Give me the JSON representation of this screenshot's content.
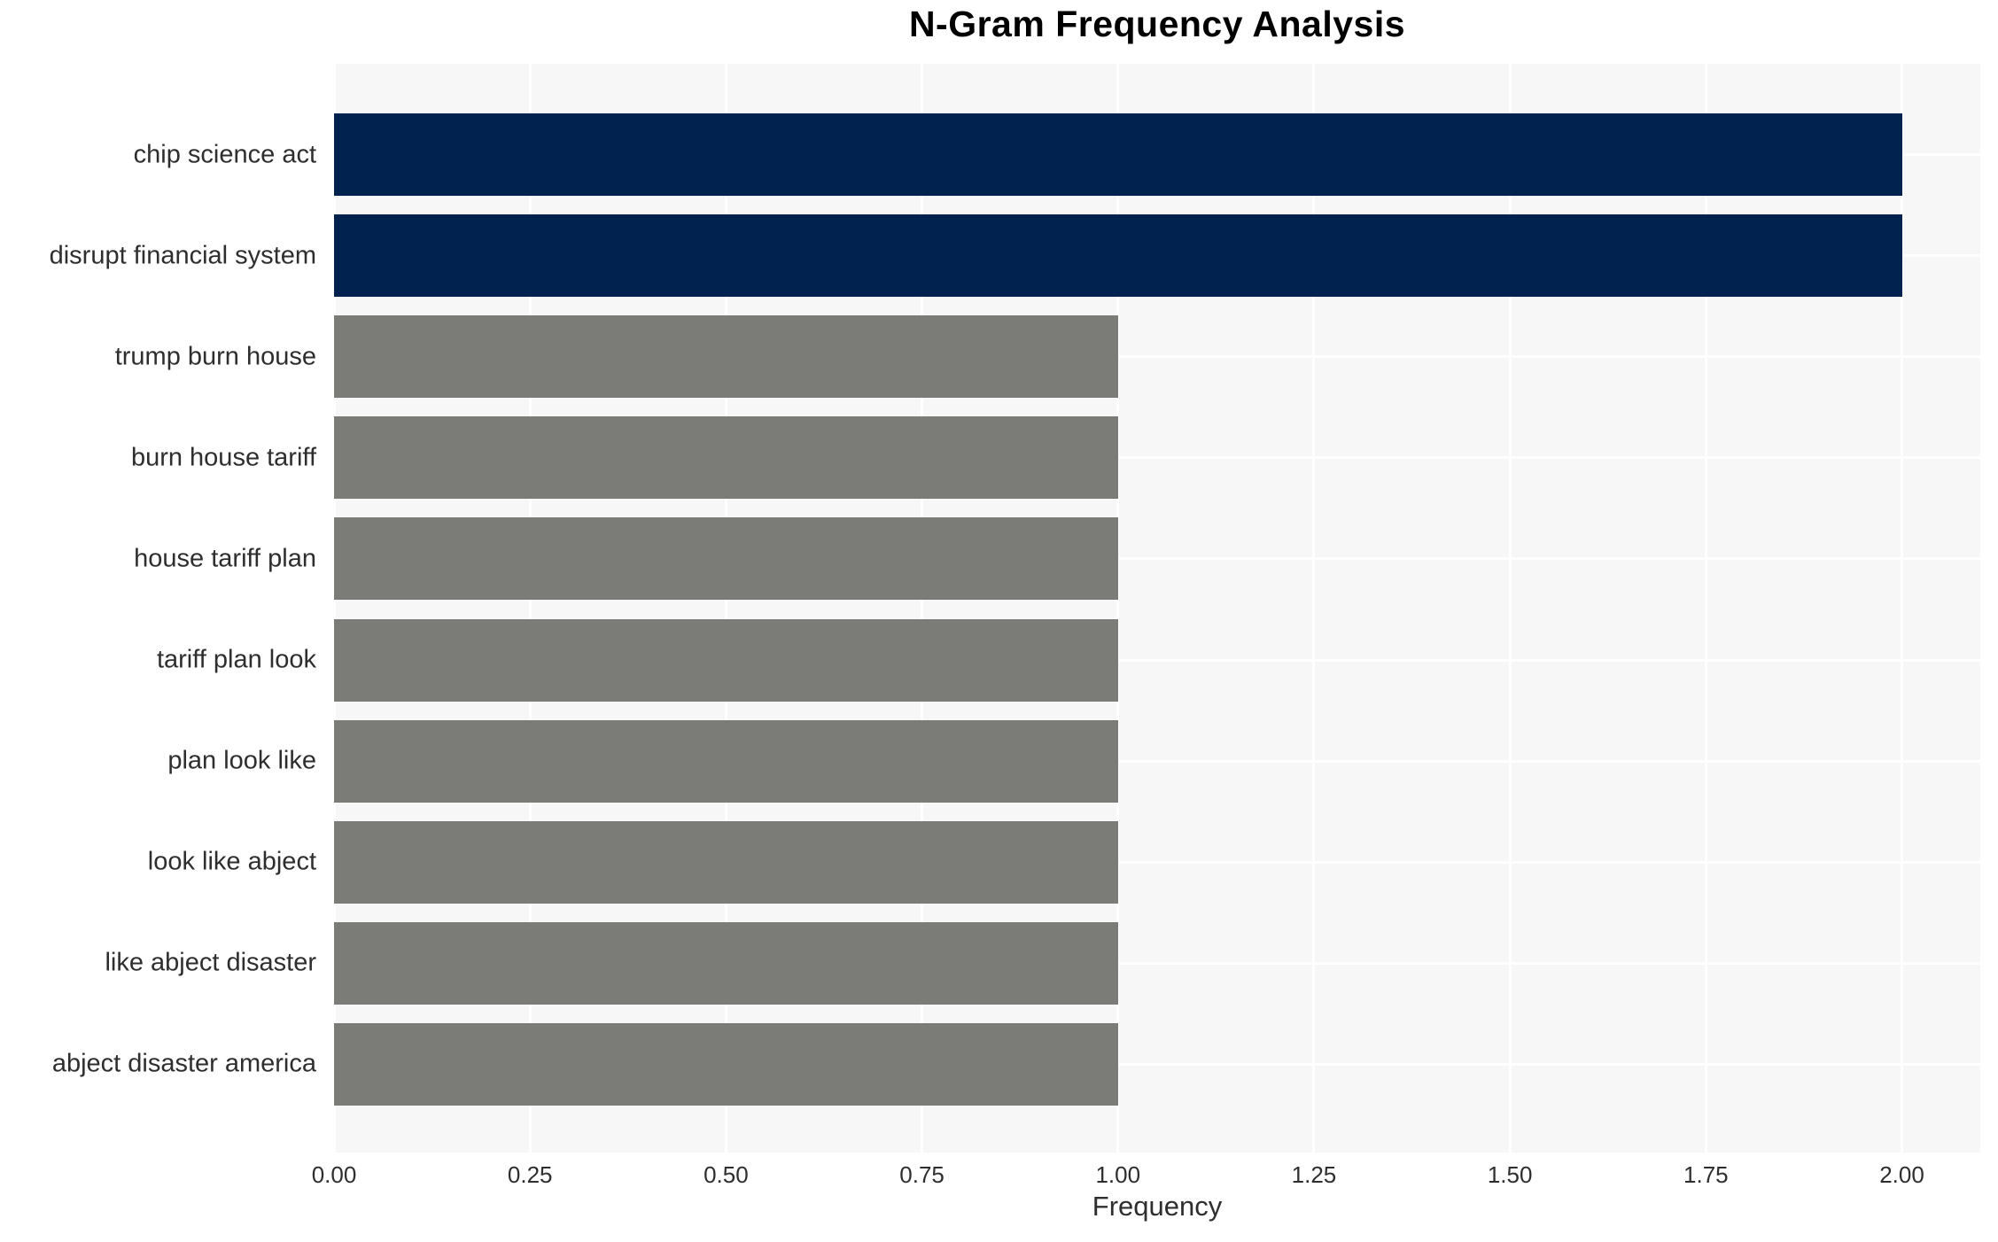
{
  "chart_data": {
    "type": "bar",
    "orientation": "horizontal",
    "title": "N-Gram Frequency Analysis",
    "xlabel": "Frequency",
    "ylabel": "",
    "categories": [
      "chip science act",
      "disrupt financial system",
      "trump burn house",
      "burn house tariff",
      "house tariff plan",
      "tariff plan look",
      "plan look like",
      "look like abject",
      "like abject disaster",
      "abject disaster america"
    ],
    "values": [
      2,
      2,
      1,
      1,
      1,
      1,
      1,
      1,
      1,
      1
    ],
    "bar_colors": [
      "#01224e",
      "#01224e",
      "#7b7b78",
      "#7b7b78",
      "#7b7b78",
      "#7b7b78",
      "#7b7b78",
      "#7b7b78",
      "#7b7b78",
      "#7b7b78"
    ],
    "xticks": [
      "0.00",
      "0.25",
      "0.50",
      "0.75",
      "1.00",
      "1.25",
      "1.50",
      "1.75",
      "2.00"
    ],
    "xtick_values": [
      0.0,
      0.25,
      0.5,
      0.75,
      1.0,
      1.25,
      1.5,
      1.75,
      2.0
    ],
    "xlim": [
      0,
      2.1
    ],
    "grid": true,
    "legend": false,
    "colors": {
      "highlight_bar": "#01224e",
      "default_bar": "#7b7b78",
      "plot_background": "#f7f7f7",
      "grid_color": "#ffffff",
      "text_color": "#2e2e2e",
      "title_color": "#000000"
    }
  }
}
